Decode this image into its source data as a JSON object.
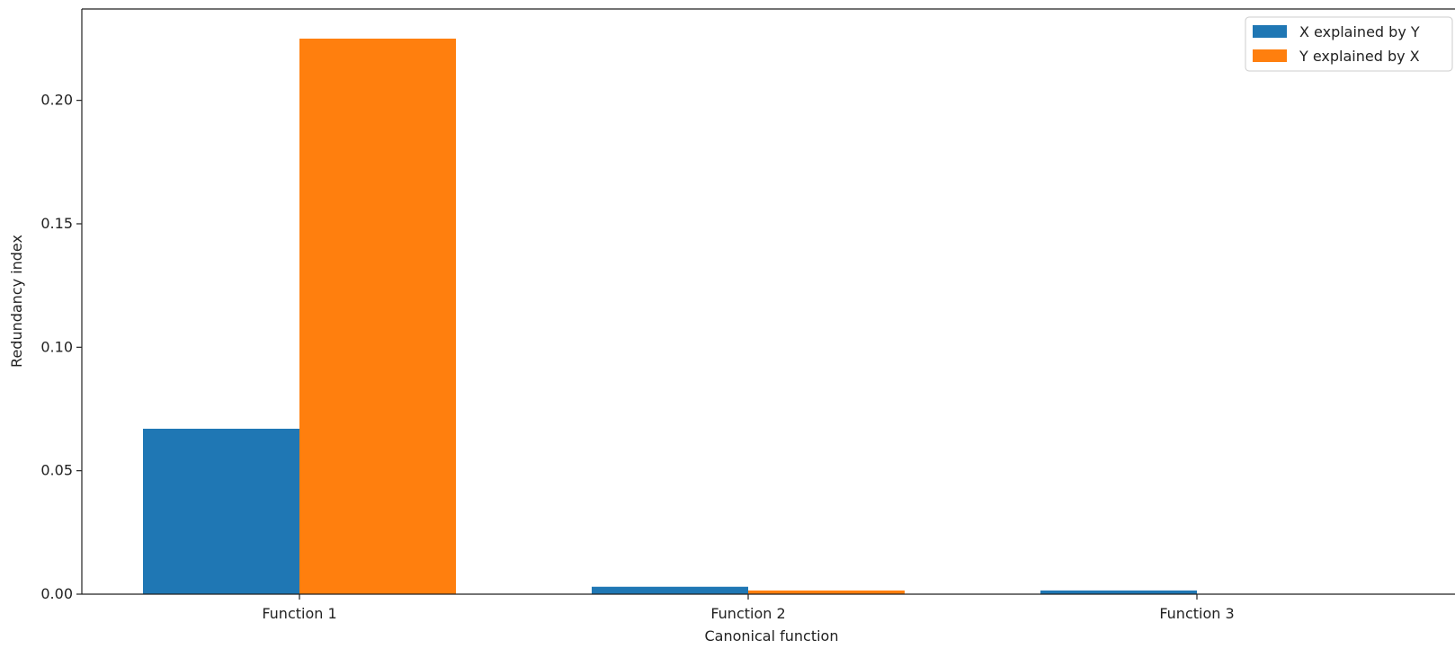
{
  "chart_data": {
    "type": "bar",
    "title": "",
    "xlabel": "Canonical function",
    "ylabel": "Redundancy index",
    "categories": [
      "Function 1",
      "Function 2",
      "Function 3"
    ],
    "series": [
      {
        "name": "X explained by Y",
        "color": "#1f77b4",
        "values": [
          0.067,
          0.003,
          0.0015
        ]
      },
      {
        "name": "Y explained by X",
        "color": "#ff7f0e",
        "values": [
          0.225,
          0.0015,
          0.0
        ]
      }
    ],
    "ylim": [
      0,
      0.237
    ],
    "yticks": [
      0.0,
      0.05,
      0.1,
      0.15,
      0.2
    ],
    "ytick_labels": [
      "0.00",
      "0.05",
      "0.10",
      "0.15",
      "0.20"
    ],
    "grid": false,
    "legend_position": "top-right"
  }
}
